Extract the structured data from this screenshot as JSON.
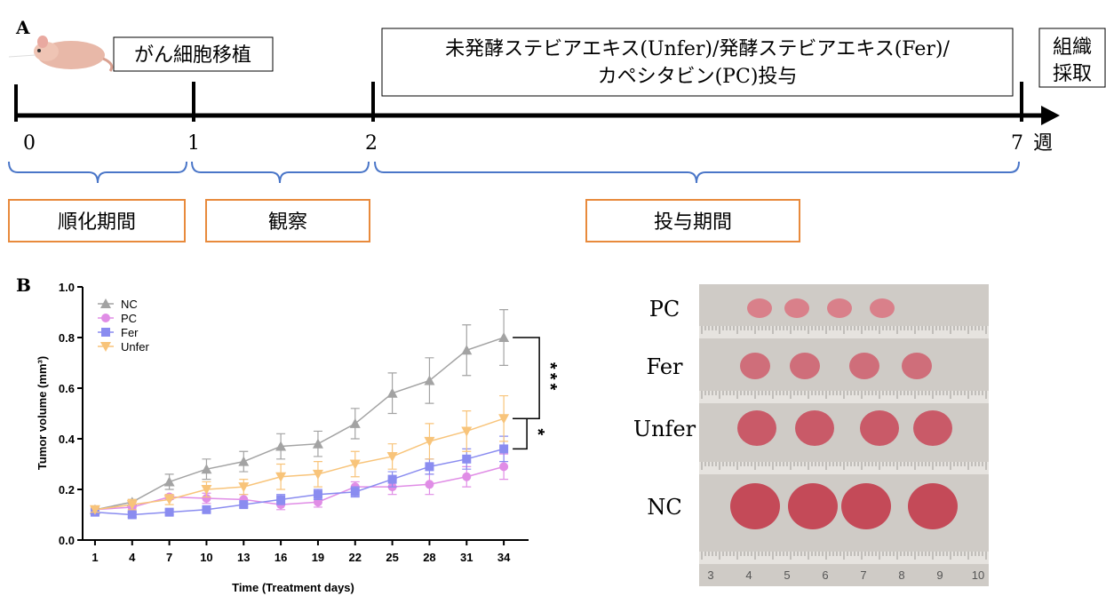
{
  "panel_a": {
    "label": "A",
    "transplant": "がん細胞移植",
    "treatment": [
      "未発酵ステビアエキス(Unfer)/発酵ステビアエキス(Fer)/",
      "カペシタビン(PC)投与"
    ],
    "harvest": [
      "組織",
      "採取"
    ],
    "weeks": [
      "0",
      "1",
      "2",
      "7"
    ],
    "week_unit": "週",
    "periods": [
      "順化期間",
      "観察",
      "投与期間"
    ]
  },
  "chart_data": {
    "type": "line",
    "label": "B",
    "xlabel": "Time (Treatment days)",
    "ylabel": "Tumor volume (mm³)",
    "x": [
      1,
      4,
      7,
      10,
      13,
      16,
      19,
      22,
      25,
      28,
      31,
      34
    ],
    "xlim": [
      0,
      36
    ],
    "xticks": [
      1,
      4,
      7,
      10,
      13,
      16,
      19,
      22,
      25,
      28,
      31,
      34
    ],
    "ylim": [
      0,
      1.0
    ],
    "yticks": [
      {
        "value": 0,
        "label": "0.0"
      },
      0.2,
      0.4,
      0.6,
      0.8,
      {
        "value": 1.0,
        "label": "1.0"
      }
    ],
    "series": [
      {
        "name": "NC",
        "color": "#a3a3a3",
        "marker": "triangle-up",
        "values": [
          0.12,
          0.15,
          0.23,
          0.28,
          0.31,
          0.37,
          0.38,
          0.46,
          0.58,
          0.63,
          0.75,
          0.8
        ],
        "errors": [
          0.01,
          0.01,
          0.03,
          0.04,
          0.04,
          0.05,
          0.05,
          0.06,
          0.08,
          0.09,
          0.1,
          0.11
        ]
      },
      {
        "name": "PC",
        "color": "#e08de6",
        "marker": "circle",
        "values": [
          0.12,
          0.13,
          0.17,
          0.165,
          0.16,
          0.14,
          0.15,
          0.21,
          0.21,
          0.22,
          0.25,
          0.29
        ],
        "errors": [
          0.01,
          0.02,
          0.01,
          0.02,
          0.02,
          0.02,
          0.02,
          0.02,
          0.03,
          0.04,
          0.04,
          0.05
        ]
      },
      {
        "name": "Fer",
        "color": "#8a8cf0",
        "marker": "square",
        "values": [
          0.11,
          0.1,
          0.11,
          0.12,
          0.14,
          0.16,
          0.18,
          0.19,
          0.24,
          0.29,
          0.32,
          0.36
        ],
        "errors": [
          0.01,
          0.01,
          0.01,
          0.01,
          0.01,
          0.02,
          0.02,
          0.02,
          0.03,
          0.03,
          0.04,
          0.05
        ]
      },
      {
        "name": "Unfer",
        "color": "#f8c47a",
        "marker": "triangle-down",
        "values": [
          0.12,
          0.14,
          0.16,
          0.2,
          0.21,
          0.25,
          0.26,
          0.3,
          0.33,
          0.39,
          0.43,
          0.48
        ],
        "errors": [
          0.01,
          0.02,
          0.02,
          0.03,
          0.03,
          0.05,
          0.05,
          0.05,
          0.05,
          0.07,
          0.08,
          0.09
        ]
      }
    ],
    "annotations": [
      {
        "text": "***",
        "from": "NC",
        "to": "Unfer"
      },
      {
        "text": "*",
        "from": "Unfer",
        "to": "Fer"
      }
    ]
  },
  "photo": {
    "groups": [
      "PC",
      "Fer",
      "Unfer",
      "NC"
    ],
    "ruler_labels": [
      "3",
      "4",
      "5",
      "6",
      "7",
      "8",
      "9",
      "10"
    ]
  }
}
